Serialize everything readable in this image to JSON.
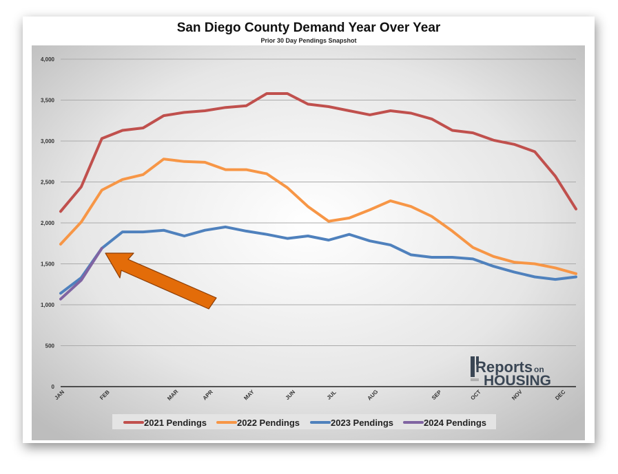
{
  "chart_data": {
    "type": "line",
    "title": "San Diego County Demand Year Over Year",
    "subtitle": "Prior 30 Day Pendings Snapshot",
    "ylim": [
      0,
      4000
    ],
    "y_ticks": [
      0,
      500,
      1000,
      1500,
      2000,
      2500,
      3000,
      3500,
      4000
    ],
    "y_tick_labels": [
      "0",
      "500",
      "1,000",
      "1,500",
      "2,000",
      "2,500",
      "3,000",
      "3,500",
      "4,000"
    ],
    "x_count": 26,
    "month_labels": [
      {
        "label": "JAN",
        "x": 0
      },
      {
        "label": "FEB",
        "x": 2.2
      },
      {
        "label": "MAR",
        "x": 5.5
      },
      {
        "label": "APR",
        "x": 7.2
      },
      {
        "label": "MAY",
        "x": 9.2
      },
      {
        "label": "JUN",
        "x": 11.2
      },
      {
        "label": "JUL",
        "x": 13.2
      },
      {
        "label": "AUG",
        "x": 15.2
      },
      {
        "label": "SEP",
        "x": 18.3
      },
      {
        "label": "OCT",
        "x": 20.2
      },
      {
        "label": "NOV",
        "x": 22.2
      },
      {
        "label": "DEC",
        "x": 24.3
      }
    ],
    "grid": true,
    "legend_position": "bottom",
    "series": [
      {
        "name": "2021 Pendings",
        "color": "#c0504d",
        "values": [
          2140,
          2440,
          3030,
          3130,
          3160,
          3310,
          3350,
          3370,
          3410,
          3430,
          3580,
          3580,
          3450,
          3420,
          3370,
          3320,
          3370,
          3340,
          3270,
          3130,
          3100,
          3010,
          2960,
          2870,
          2570,
          2170
        ]
      },
      {
        "name": "2022 Pendings",
        "color": "#f79646",
        "values": [
          1740,
          2010,
          2400,
          2530,
          2590,
          2780,
          2750,
          2740,
          2650,
          2650,
          2600,
          2430,
          2200,
          2020,
          2060,
          2160,
          2270,
          2200,
          2080,
          1900,
          1700,
          1590,
          1520,
          1500,
          1450,
          1380
        ]
      },
      {
        "name": "2023 Pendings",
        "color": "#4f81bd",
        "values": [
          1140,
          1330,
          1690,
          1890,
          1890,
          1910,
          1840,
          1910,
          1950,
          1900,
          1860,
          1810,
          1840,
          1790,
          1860,
          1780,
          1730,
          1610,
          1580,
          1580,
          1560,
          1470,
          1400,
          1340,
          1310,
          1340
        ]
      },
      {
        "name": "2024 Pendings",
        "color": "#8064a2",
        "values": [
          1070,
          1300,
          1690
        ]
      }
    ]
  },
  "logo": {
    "line1": "Reports",
    "line1_small": "on",
    "line2": "HOUSING"
  },
  "arrow_color": "#e36c09"
}
